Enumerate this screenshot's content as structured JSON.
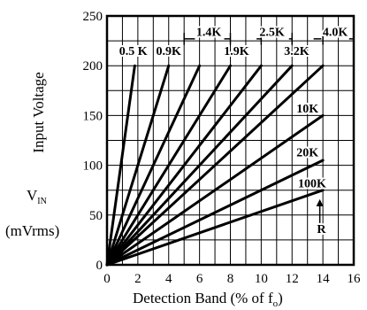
{
  "chart_data": {
    "type": "line",
    "xlabel": "Detection Band (% of f",
    "xlabel_sub": "o",
    "xlabel_close": ")",
    "ylabel_lines": [
      "Input Voltage",
      "V",
      "(mVrms)"
    ],
    "ylabel_sub": "IN",
    "xlim": [
      0,
      16
    ],
    "ylim": [
      0,
      250
    ],
    "xticks": [
      "0",
      "2",
      "4",
      "6",
      "8",
      "10",
      "12",
      "14",
      "16"
    ],
    "yticks": [
      "0",
      "50",
      "100",
      "150",
      "200",
      "250"
    ],
    "grid": true,
    "series": [
      {
        "name": "0.5K",
        "x": [
          0,
          1.8
        ],
        "y": [
          0,
          200
        ]
      },
      {
        "name": "0.9K",
        "x": [
          0,
          4.0
        ],
        "y": [
          0,
          200
        ]
      },
      {
        "name": "1.4K",
        "x": [
          0,
          6.0
        ],
        "y": [
          0,
          200
        ]
      },
      {
        "name": "1.9K",
        "x": [
          0,
          8.0
        ],
        "y": [
          0,
          200
        ]
      },
      {
        "name": "2.5K",
        "x": [
          0,
          10.0
        ],
        "y": [
          0,
          200
        ]
      },
      {
        "name": "3.2K",
        "x": [
          0,
          12.0
        ],
        "y": [
          0,
          200
        ]
      },
      {
        "name": "4.0K",
        "x": [
          0,
          14.0
        ],
        "y": [
          0,
          200
        ]
      },
      {
        "name": "10K",
        "x": [
          0,
          14.0
        ],
        "y": [
          0,
          150
        ]
      },
      {
        "name": "20K",
        "x": [
          0,
          14.0
        ],
        "y": [
          0,
          105
        ]
      },
      {
        "name": "100K",
        "x": [
          0,
          14.0
        ],
        "y": [
          0,
          75
        ]
      }
    ],
    "annotations": [
      {
        "text": "0.5 K",
        "x": 1.7,
        "y": 211
      },
      {
        "text": "0.9K",
        "x": 4.0,
        "y": 211
      },
      {
        "text": "1.4K",
        "x": 6.6,
        "y": 230
      },
      {
        "text": "1.9K",
        "x": 8.4,
        "y": 211
      },
      {
        "text": "2.5K",
        "x": 10.7,
        "y": 230
      },
      {
        "text": "3.2K",
        "x": 12.3,
        "y": 211
      },
      {
        "text": "4.0K",
        "x": 14.8,
        "y": 230
      },
      {
        "text": "10K",
        "x": 13.0,
        "y": 153
      },
      {
        "text": "20K",
        "x": 13.0,
        "y": 109
      },
      {
        "text": "100K",
        "x": 13.3,
        "y": 78
      },
      {
        "text": "R",
        "x": 13.9,
        "y": 32
      }
    ]
  }
}
